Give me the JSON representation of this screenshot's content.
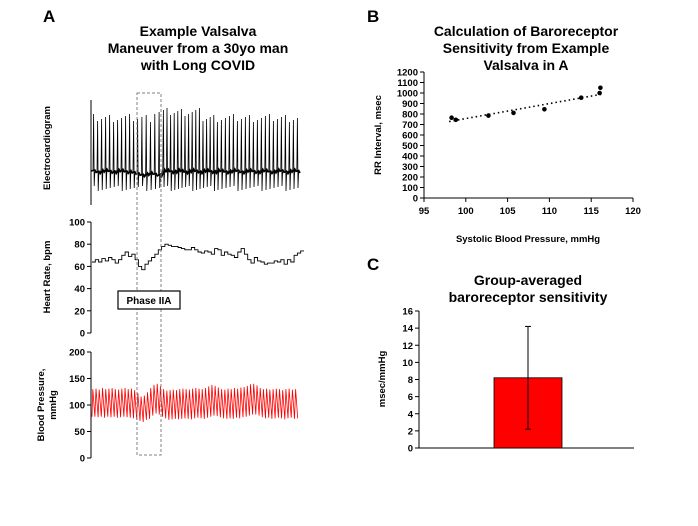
{
  "panels": {
    "a": {
      "letter": "A",
      "title_lines": [
        "Example Valsalva",
        "Maneuver from a 30yo man",
        "with Long COVID"
      ],
      "phase_label": "Phase IIA",
      "colors": {
        "ecg": "#000000",
        "heart_rate": "#000000",
        "blood_pressure": "#ff0000",
        "phase_box": "#808080"
      }
    },
    "b": {
      "letter": "B",
      "title_lines": [
        "Calculation of Baroreceptor",
        "Sensitivity from Example",
        "Valsalva in A"
      ]
    },
    "c": {
      "letter": "C",
      "title_lines": [
        "Group-averaged",
        "baroreceptor sensitivity"
      ]
    }
  },
  "chart_data": [
    {
      "id": "ecg",
      "type": "line",
      "ylabel": "Electrocardiogram",
      "yticks": [],
      "series": [
        {
          "name": "Electrocardiogram",
          "color": "#000000"
        }
      ]
    },
    {
      "id": "heart_rate",
      "type": "line",
      "ylabel": "Heart Rate, bpm",
      "ylim": [
        0,
        100
      ],
      "yticks": [
        "0",
        "20",
        "40",
        "60",
        "80",
        "100"
      ],
      "series": [
        {
          "name": "Heart Rate",
          "color": "#000000",
          "y": [
            64,
            66,
            64,
            67,
            65,
            68,
            66,
            63,
            66,
            70,
            73,
            69,
            71,
            66,
            60,
            57,
            62,
            65,
            68,
            71,
            75,
            78,
            80,
            79,
            78,
            78,
            77,
            76,
            75,
            75,
            77,
            75,
            73,
            72,
            74,
            73,
            71,
            76,
            75,
            70,
            73,
            71,
            70,
            68,
            73,
            76,
            71,
            66,
            63,
            68,
            65,
            64,
            62,
            63,
            63,
            65,
            64,
            66,
            62,
            66,
            64,
            70,
            72,
            74
          ]
        }
      ]
    },
    {
      "id": "blood_pressure",
      "type": "line",
      "ylabel": "Blood Pressure, mmHg",
      "ylabel_lines": [
        "Blood Pressure,",
        "mmHg"
      ],
      "ylim": [
        0,
        200
      ],
      "yticks": [
        "0",
        "50",
        "100",
        "150",
        "200"
      ],
      "series": [
        {
          "name": "Blood Pressure",
          "color": "#ff0000",
          "systolic": [
            130,
            131,
            129,
            132,
            130,
            131,
            132,
            130,
            129,
            131,
            132,
            130,
            131,
            128,
            122,
            116,
            118,
            124,
            132,
            138,
            140,
            135,
            130,
            127,
            128,
            129,
            128,
            130,
            131,
            130,
            129,
            131,
            132,
            131,
            130,
            132,
            135,
            138,
            136,
            133,
            130,
            129,
            131,
            130,
            132,
            131,
            133,
            134,
            136,
            139,
            140,
            137,
            132,
            130,
            131,
            129,
            130,
            131,
            130,
            128,
            130,
            131,
            129,
            130
          ],
          "diastolic": [
            78,
            77,
            78,
            76,
            78,
            77,
            78,
            76,
            77,
            78,
            77,
            76,
            75,
            72,
            70,
            68,
            72,
            74,
            80,
            84,
            82,
            78,
            75,
            72,
            73,
            74,
            73,
            74,
            75,
            74,
            73,
            75,
            76,
            75,
            74,
            76,
            78,
            80,
            79,
            77,
            75,
            74,
            75,
            74,
            76,
            75,
            77,
            78,
            80,
            82,
            82,
            80,
            77,
            75,
            76,
            74,
            75,
            76,
            75,
            73,
            75,
            76,
            74,
            75
          ]
        }
      ]
    },
    {
      "id": "baroreceptor_scatter",
      "type": "scatter",
      "title": "Calculation of Baroreceptor Sensitivity from Example Valsalva in A",
      "xlabel": "Systolic Blood Pressure, mmHg",
      "ylabel": "RR Interval, msec",
      "xlim": [
        95,
        120
      ],
      "ylim": [
        0,
        1200
      ],
      "xticks": [
        "95",
        "100",
        "105",
        "110",
        "115",
        "120"
      ],
      "yticks": [
        "0",
        "100",
        "200",
        "300",
        "400",
        "500",
        "600",
        "700",
        "800",
        "900",
        "1000",
        "1100",
        "1200"
      ],
      "points": [
        {
          "x": 98.3,
          "y": 765
        },
        {
          "x": 98.8,
          "y": 745
        },
        {
          "x": 102.7,
          "y": 785
        },
        {
          "x": 105.7,
          "y": 810
        },
        {
          "x": 109.4,
          "y": 845
        },
        {
          "x": 113.8,
          "y": 955
        },
        {
          "x": 116.0,
          "y": 1000
        },
        {
          "x": 116.1,
          "y": 1050
        }
      ],
      "trendline": {
        "style": "dotted",
        "x": [
          98,
          116.5
        ],
        "y": [
          728,
          992
        ]
      }
    },
    {
      "id": "group_bar",
      "type": "bar",
      "title": "Group-averaged baroreceptor sensitivity",
      "ylabel": "msec/mmHg",
      "ylim": [
        0,
        16
      ],
      "yticks": [
        "0",
        "2",
        "4",
        "6",
        "8",
        "10",
        "12",
        "14",
        "16"
      ],
      "categories": [
        ""
      ],
      "values": [
        8.2
      ],
      "error": [
        6.0
      ],
      "color": "#ff0000"
    }
  ]
}
